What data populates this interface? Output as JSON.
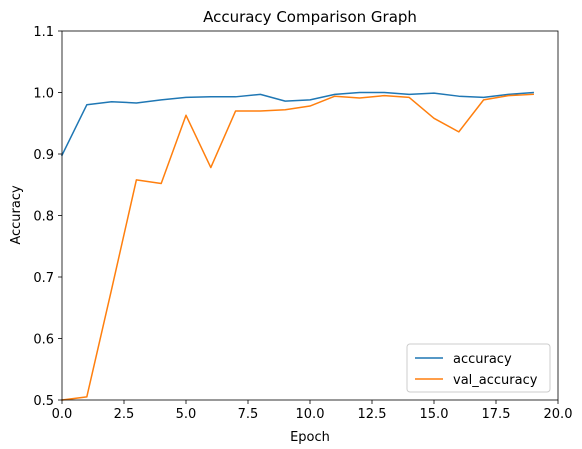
{
  "chart_data": {
    "type": "line",
    "title": "Accuracy Comparison Graph",
    "xlabel": "Epoch",
    "ylabel": "Accuracy",
    "xlim": [
      0,
      20
    ],
    "ylim": [
      0.5,
      1.1
    ],
    "xticks": [
      "0.0",
      "2.5",
      "5.0",
      "7.5",
      "10.0",
      "12.5",
      "15.0",
      "17.5",
      "20.0"
    ],
    "yticks": [
      "0.5",
      "0.6",
      "0.7",
      "0.8",
      "0.9",
      "1.0",
      "1.1"
    ],
    "grid": false,
    "legend_position": "lower-right",
    "x": [
      0,
      1,
      2,
      3,
      4,
      5,
      6,
      7,
      8,
      9,
      10,
      11,
      12,
      13,
      14,
      15,
      16,
      17,
      18,
      19
    ],
    "series": [
      {
        "name": "accuracy",
        "color": "#1f77b4",
        "values": [
          0.898,
          0.98,
          0.985,
          0.983,
          0.988,
          0.992,
          0.993,
          0.993,
          0.997,
          0.986,
          0.988,
          0.997,
          1.0,
          1.0,
          0.997,
          0.999,
          0.994,
          0.992,
          0.997,
          1.0
        ]
      },
      {
        "name": "val_accuracy",
        "color": "#ff7f0e",
        "values": [
          0.5,
          0.505,
          0.68,
          0.858,
          0.852,
          0.963,
          0.878,
          0.97,
          0.97,
          0.972,
          0.978,
          0.994,
          0.991,
          0.995,
          0.992,
          0.958,
          0.936,
          0.988,
          0.995,
          0.997
        ]
      }
    ]
  }
}
